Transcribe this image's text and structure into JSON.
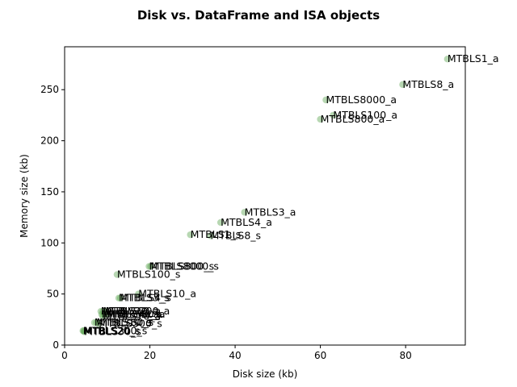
{
  "chart_data": {
    "type": "scatter",
    "title": "Disk vs. DataFrame and ISA objects",
    "xlabel": "Disk size (kb)",
    "ylabel": "Memory size (kb)",
    "xlim": [
      0,
      94
    ],
    "ylim": [
      0,
      292
    ],
    "xticks": [
      0,
      20,
      40,
      60,
      80
    ],
    "yticks": [
      0,
      50,
      100,
      150,
      200,
      250
    ],
    "grid": false,
    "point_color": "#4a9a3f",
    "points": [
      {
        "x": 89.8,
        "y": 280,
        "label": "MTBLS1_a"
      },
      {
        "x": 79.3,
        "y": 255,
        "label": "MTBLS8_a"
      },
      {
        "x": 61.3,
        "y": 240,
        "label": "MTBLS8000_a"
      },
      {
        "x": 63.0,
        "y": 225,
        "label": "MTBLS100_a"
      },
      {
        "x": 60.0,
        "y": 221,
        "label": "MTBLS800_a"
      },
      {
        "x": 42.2,
        "y": 130,
        "label": "MTBLS3_a"
      },
      {
        "x": 36.6,
        "y": 120,
        "label": "MTBLS4_a"
      },
      {
        "x": 29.5,
        "y": 108,
        "label": "MTBLS1_s"
      },
      {
        "x": 34.2,
        "y": 107,
        "label": "MTBLS8_s"
      },
      {
        "x": 19.8,
        "y": 77,
        "label": "MTBLS8000_s"
      },
      {
        "x": 20.2,
        "y": 77,
        "label": "MTBLS800_s"
      },
      {
        "x": 12.3,
        "y": 69,
        "label": "MTBLS100_s"
      },
      {
        "x": 17.3,
        "y": 50,
        "label": "MTBLS10_a"
      },
      {
        "x": 12.7,
        "y": 46,
        "label": "MTBLS3_s"
      },
      {
        "x": 13.1,
        "y": 46,
        "label": "MTBLS4_s"
      },
      {
        "x": 8.5,
        "y": 33,
        "label": "MTBLS20_a"
      },
      {
        "x": 9.0,
        "y": 33,
        "label": "MTBLS60_a"
      },
      {
        "x": 9.6,
        "y": 33,
        "label": "MTBLS200_a"
      },
      {
        "x": 8.7,
        "y": 30,
        "label": "MTBLS30_a"
      },
      {
        "x": 9.3,
        "y": 30,
        "label": "MTBLS40_a"
      },
      {
        "x": 10.0,
        "y": 30,
        "label": "MTBLS50_a"
      },
      {
        "x": 9.0,
        "y": 28,
        "label": "MTBLS70_a"
      },
      {
        "x": 7.0,
        "y": 22,
        "label": "MTBLS10_s"
      },
      {
        "x": 7.5,
        "y": 22,
        "label": "MTBLS60_s"
      },
      {
        "x": 8.0,
        "y": 21,
        "label": "MTBLS500_s"
      },
      {
        "x": 4.3,
        "y": 14,
        "label": "MTBLS20_s"
      },
      {
        "x": 4.5,
        "y": 14,
        "label": "MTBLS200_s"
      },
      {
        "x": 4.6,
        "y": 13,
        "label": "MTBLS30_s"
      }
    ]
  }
}
